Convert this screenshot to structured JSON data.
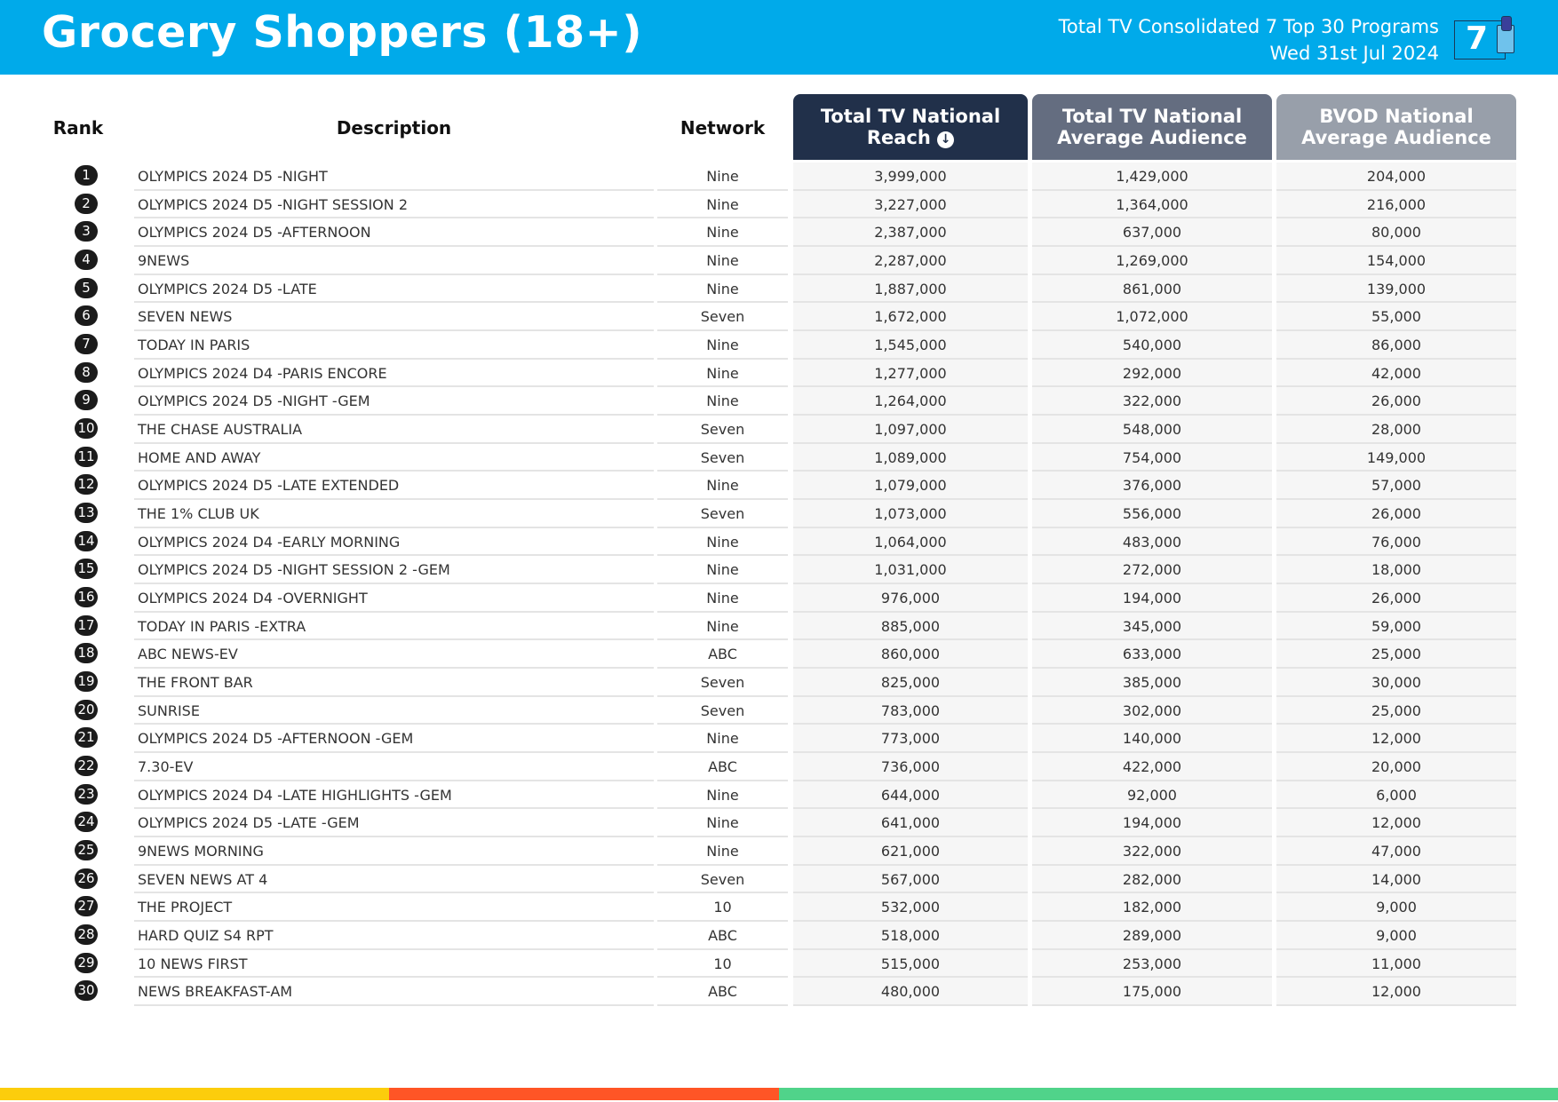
{
  "header": {
    "title": "Grocery Shoppers (18+)",
    "subtitle": "Total TV Consolidated 7 Top 30 Programs",
    "date": "Wed 31st Jul 2024",
    "logo_text": "7"
  },
  "columns": {
    "rank": "Rank",
    "description": "Description",
    "network": "Network",
    "reach_line1": "Total TV National",
    "reach_line2": "Reach",
    "avg_line1": "Total TV National",
    "avg_line2": "Average Audience",
    "bvod_line1": "BVOD National",
    "bvod_line2": "Average Audience"
  },
  "colors": {
    "header_bg": "#00aaea",
    "bar_yellow": "#fccd0c",
    "bar_red": "#ff5526",
    "bar_green": "#50d38a"
  },
  "rows": [
    [
      "1",
      "OLYMPICS 2024 D5 -NIGHT",
      "Nine",
      "3,999,000",
      "1,429,000",
      "204,000"
    ],
    [
      "2",
      "OLYMPICS 2024 D5 -NIGHT SESSION 2",
      "Nine",
      "3,227,000",
      "1,364,000",
      "216,000"
    ],
    [
      "3",
      "OLYMPICS 2024 D5 -AFTERNOON",
      "Nine",
      "2,387,000",
      "637,000",
      "80,000"
    ],
    [
      "4",
      "9NEWS",
      "Nine",
      "2,287,000",
      "1,269,000",
      "154,000"
    ],
    [
      "5",
      "OLYMPICS 2024 D5 -LATE",
      "Nine",
      "1,887,000",
      "861,000",
      "139,000"
    ],
    [
      "6",
      "SEVEN NEWS",
      "Seven",
      "1,672,000",
      "1,072,000",
      "55,000"
    ],
    [
      "7",
      "TODAY IN PARIS",
      "Nine",
      "1,545,000",
      "540,000",
      "86,000"
    ],
    [
      "8",
      "OLYMPICS 2024 D4 -PARIS ENCORE",
      "Nine",
      "1,277,000",
      "292,000",
      "42,000"
    ],
    [
      "9",
      "OLYMPICS 2024 D5 -NIGHT -GEM",
      "Nine",
      "1,264,000",
      "322,000",
      "26,000"
    ],
    [
      "10",
      "THE CHASE AUSTRALIA",
      "Seven",
      "1,097,000",
      "548,000",
      "28,000"
    ],
    [
      "11",
      "HOME AND AWAY",
      "Seven",
      "1,089,000",
      "754,000",
      "149,000"
    ],
    [
      "12",
      "OLYMPICS 2024 D5 -LATE EXTENDED",
      "Nine",
      "1,079,000",
      "376,000",
      "57,000"
    ],
    [
      "13",
      "THE 1% CLUB UK",
      "Seven",
      "1,073,000",
      "556,000",
      "26,000"
    ],
    [
      "14",
      "OLYMPICS 2024 D4 -EARLY MORNING",
      "Nine",
      "1,064,000",
      "483,000",
      "76,000"
    ],
    [
      "15",
      "OLYMPICS 2024 D5 -NIGHT SESSION 2 -GEM",
      "Nine",
      "1,031,000",
      "272,000",
      "18,000"
    ],
    [
      "16",
      "OLYMPICS 2024 D4 -OVERNIGHT",
      "Nine",
      "976,000",
      "194,000",
      "26,000"
    ],
    [
      "17",
      "TODAY IN PARIS -EXTRA",
      "Nine",
      "885,000",
      "345,000",
      "59,000"
    ],
    [
      "18",
      "ABC NEWS-EV",
      "ABC",
      "860,000",
      "633,000",
      "25,000"
    ],
    [
      "19",
      "THE FRONT BAR",
      "Seven",
      "825,000",
      "385,000",
      "30,000"
    ],
    [
      "20",
      "SUNRISE",
      "Seven",
      "783,000",
      "302,000",
      "25,000"
    ],
    [
      "21",
      "OLYMPICS 2024 D5 -AFTERNOON -GEM",
      "Nine",
      "773,000",
      "140,000",
      "12,000"
    ],
    [
      "22",
      "7.30-EV",
      "ABC",
      "736,000",
      "422,000",
      "20,000"
    ],
    [
      "23",
      "OLYMPICS 2024 D4 -LATE HIGHLIGHTS -GEM",
      "Nine",
      "644,000",
      "92,000",
      "6,000"
    ],
    [
      "24",
      "OLYMPICS 2024 D5 -LATE -GEM",
      "Nine",
      "641,000",
      "194,000",
      "12,000"
    ],
    [
      "25",
      "9NEWS MORNING",
      "Nine",
      "621,000",
      "322,000",
      "47,000"
    ],
    [
      "26",
      "SEVEN NEWS AT 4",
      "Seven",
      "567,000",
      "282,000",
      "14,000"
    ],
    [
      "27",
      "THE PROJECT",
      "10",
      "532,000",
      "182,000",
      "9,000"
    ],
    [
      "28",
      "HARD QUIZ S4 RPT",
      "ABC",
      "518,000",
      "289,000",
      "9,000"
    ],
    [
      "29",
      "10 NEWS FIRST",
      "10",
      "515,000",
      "253,000",
      "11,000"
    ],
    [
      "30",
      "NEWS BREAKFAST-AM",
      "ABC",
      "480,000",
      "175,000",
      "12,000"
    ]
  ]
}
